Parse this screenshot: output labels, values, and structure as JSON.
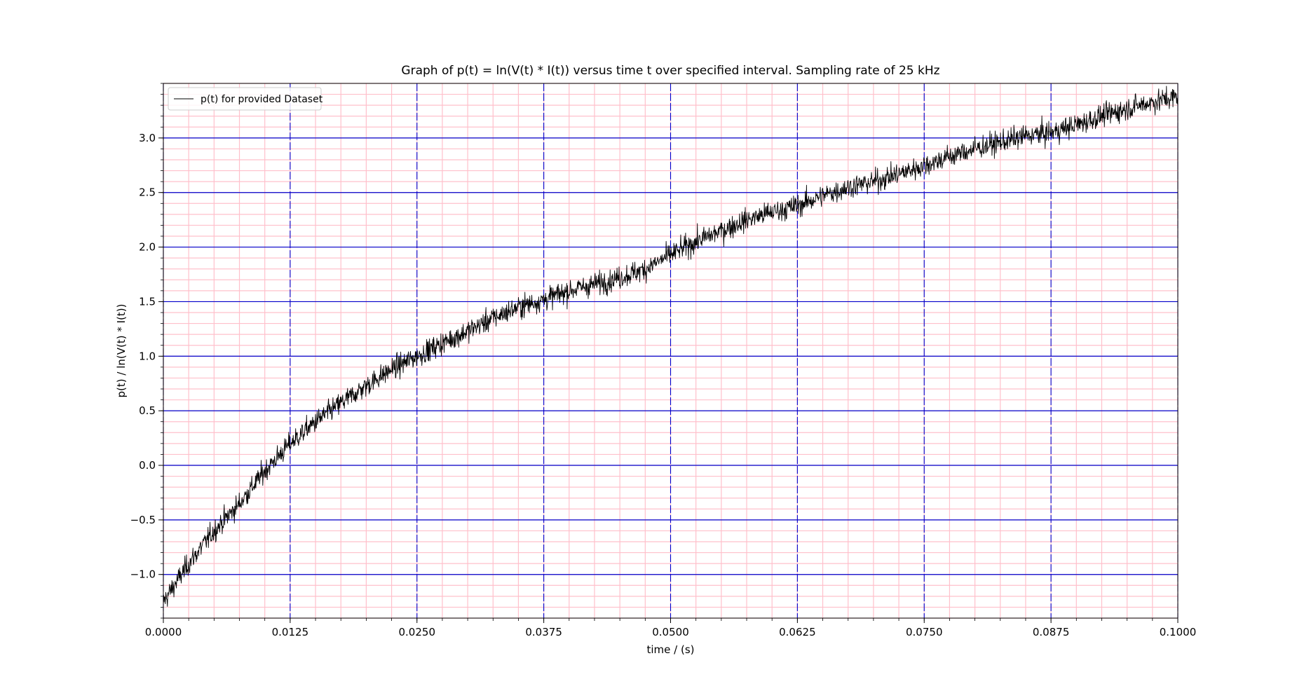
{
  "chart_data": {
    "type": "line",
    "title": "Graph of p(t)  = ln(V(t) * I(t)) versus time t over specified interval. Sampling rate of 25 kHz",
    "xlabel": "time / (s)",
    "ylabel": "p(t) / ln(V(t) * I(t))",
    "xlim": [
      0.0,
      0.1
    ],
    "ylim": [
      -1.4,
      3.5
    ],
    "x_ticks": [
      0.0,
      0.0125,
      0.025,
      0.0375,
      0.05,
      0.0625,
      0.075,
      0.0875,
      0.1
    ],
    "x_tick_labels": [
      "0.0000",
      "0.0125",
      "0.0250",
      "0.0375",
      "0.0500",
      "0.0625",
      "0.0750",
      "0.0875",
      "0.1000"
    ],
    "y_ticks": [
      -1.0,
      -0.5,
      0.0,
      0.5,
      1.0,
      1.5,
      2.0,
      2.5,
      3.0
    ],
    "y_tick_labels": [
      "−1.0",
      "−0.5",
      "0.0",
      "0.5",
      "1.0",
      "1.5",
      "2.0",
      "2.5",
      "3.0"
    ],
    "x_minor_step": 0.0025,
    "y_minor_step": 0.1,
    "grid": {
      "major": true,
      "minor": true,
      "major_color": "#0000cc",
      "minor_color": "#ffc0cb",
      "x_major_style": "dashed",
      "y_major_style": "solid"
    },
    "legend": {
      "position": "top-left"
    },
    "series": [
      {
        "name": "p(t) for provided Dataset",
        "color": "#000000",
        "sampling_rate_hz": 25000,
        "x_start": 0.0,
        "x_end": 0.1,
        "trend_x": [
          0.0,
          0.0025,
          0.005,
          0.0075,
          0.01,
          0.0125,
          0.015,
          0.0175,
          0.02,
          0.0225,
          0.025,
          0.0275,
          0.03,
          0.0325,
          0.035,
          0.0375,
          0.04,
          0.0425,
          0.045,
          0.0475,
          0.05,
          0.0525,
          0.055,
          0.0575,
          0.06,
          0.0625,
          0.065,
          0.0675,
          0.07,
          0.0725,
          0.075,
          0.0775,
          0.08,
          0.0825,
          0.085,
          0.0875,
          0.09,
          0.0925,
          0.095,
          0.0975,
          0.1
        ],
        "trend_y": [
          -1.25,
          -0.9,
          -0.6,
          -0.35,
          -0.05,
          0.2,
          0.4,
          0.57,
          0.73,
          0.88,
          1.0,
          1.12,
          1.23,
          1.35,
          1.45,
          1.52,
          1.6,
          1.66,
          1.72,
          1.8,
          1.93,
          2.05,
          2.15,
          2.25,
          2.32,
          2.38,
          2.47,
          2.55,
          2.6,
          2.67,
          2.75,
          2.83,
          2.9,
          2.96,
          3.02,
          3.05,
          3.12,
          3.2,
          3.27,
          3.33,
          3.38
        ],
        "noise_amplitude": 0.12
      }
    ]
  }
}
